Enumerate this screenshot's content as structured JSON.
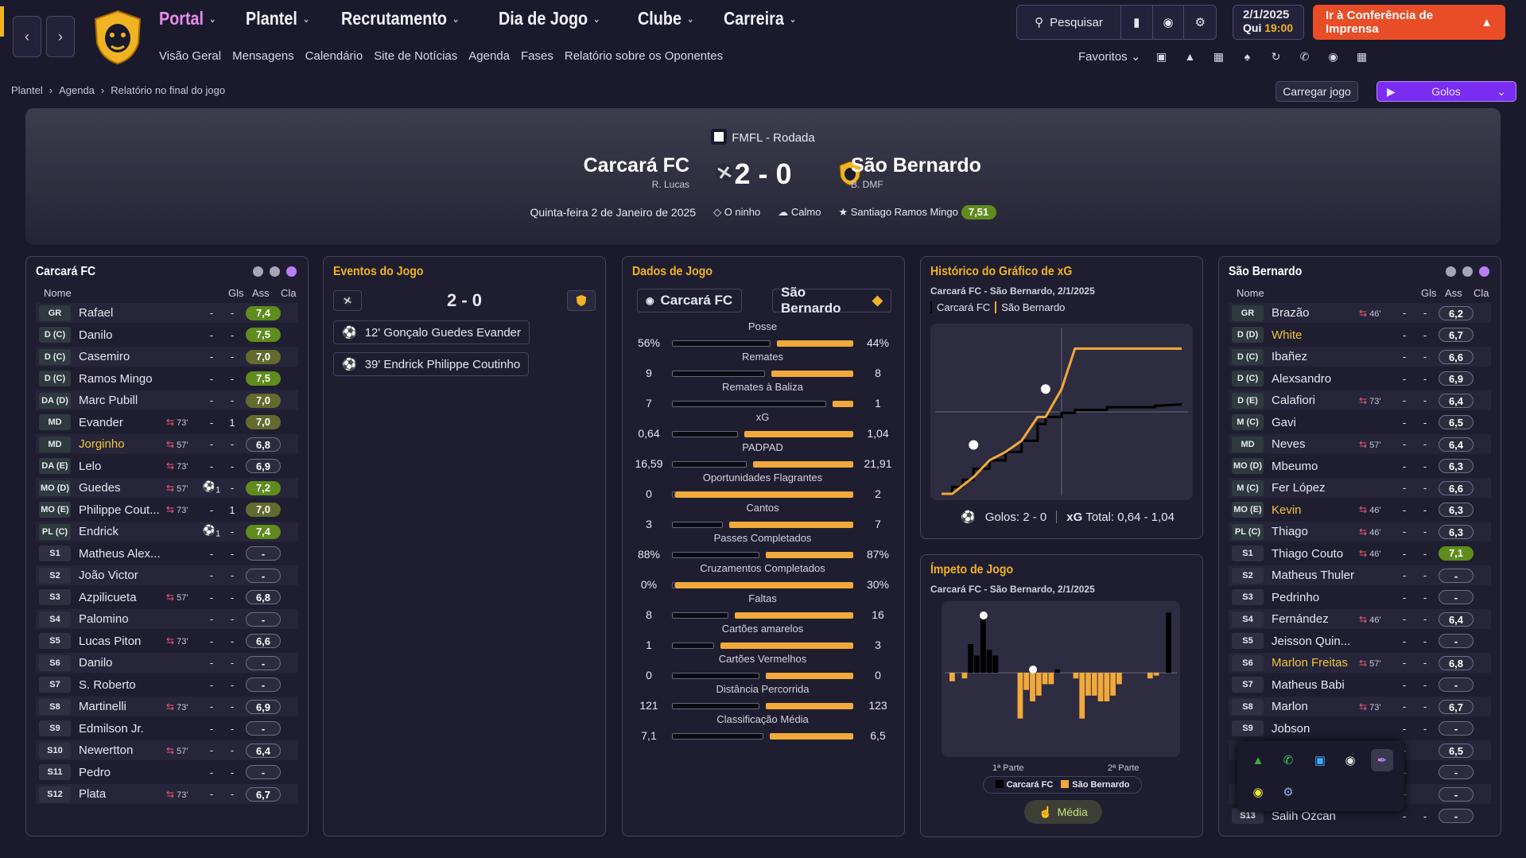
{
  "nav": {
    "items": [
      {
        "label": "Portal",
        "active": true
      },
      {
        "label": "Plantel"
      },
      {
        "label": "Recrutamento"
      },
      {
        "label": "Dia de Jogo"
      },
      {
        "label": "Clube"
      },
      {
        "label": "Carreira"
      }
    ],
    "sub": [
      "Visão Geral",
      "Mensagens",
      "Calendário",
      "Site de Notícias",
      "Agenda",
      "Fases",
      "Relatório sobre os Oponentes"
    ]
  },
  "toolbar": {
    "search_label": "Pesquisar",
    "date": "2/1/2025",
    "weekday": "Qui",
    "time": "19:00",
    "press_label": "Ir à Conferência de Imprensa",
    "favorites_label": "Favoritos"
  },
  "breadcrumb": [
    "Plantel",
    "Agenda",
    "Relatório no final do jogo"
  ],
  "actions": {
    "load_label": "Carregar jogo",
    "goals_label": "Golos"
  },
  "match": {
    "competition": "FMFL - Rodada",
    "home": "Carcará FC",
    "home_sub": "R. Lucas",
    "away": "São Bernardo",
    "away_sub": "B. DMF",
    "score": "2 - 0",
    "date": "Quinta-feira 2 de Janeiro de 2025",
    "stadium": "O ninho",
    "weather": "Calmo",
    "potm": "Santiago Ramos Mingo",
    "potm_rating": "7,51"
  },
  "home_team": {
    "title": "Carcará FC",
    "headers": {
      "name": "Nome",
      "gls": "Gls",
      "ass": "Ass",
      "cla": "Cla"
    },
    "players": [
      {
        "pos": "GR",
        "name": "Rafael",
        "sub": "",
        "gls": "-",
        "ass": "-",
        "cla": "7,4",
        "tone": "hi"
      },
      {
        "pos": "D (C)",
        "name": "Danilo",
        "sub": "",
        "gls": "-",
        "ass": "-",
        "cla": "7,5",
        "tone": "hi"
      },
      {
        "pos": "D (C)",
        "name": "Casemiro",
        "sub": "",
        "gls": "-",
        "ass": "-",
        "cla": "7,0",
        "tone": "mid"
      },
      {
        "pos": "D (C)",
        "name": "Ramos Mingo",
        "sub": "",
        "gls": "-",
        "ass": "-",
        "cla": "7,5",
        "tone": "hi"
      },
      {
        "pos": "DA (D)",
        "name": "Marc Pubill",
        "sub": "",
        "gls": "-",
        "ass": "-",
        "cla": "7,0",
        "tone": "mid"
      },
      {
        "pos": "MD",
        "name": "Evander",
        "sub": "73'",
        "gls": "-",
        "ass": "1",
        "cla": "7,0",
        "tone": "mid"
      },
      {
        "pos": "MD",
        "name": "Jorginho",
        "sub": "57'",
        "gls": "-",
        "ass": "-",
        "cla": "6,8",
        "tone": "grey",
        "hl": true
      },
      {
        "pos": "DA (E)",
        "name": "Lelo",
        "sub": "73'",
        "gls": "-",
        "ass": "-",
        "cla": "6,9",
        "tone": "grey"
      },
      {
        "pos": "MO (D)",
        "name": "Guedes",
        "sub": "57'",
        "gls": "1",
        "ass": "-",
        "cla": "7,2",
        "tone": "hi"
      },
      {
        "pos": "MO (E)",
        "name": "Philippe Cout...",
        "sub": "73'",
        "gls": "-",
        "ass": "1",
        "cla": "7,0",
        "tone": "mid"
      },
      {
        "pos": "PL (C)",
        "name": "Endrick",
        "sub": "",
        "gls": "1",
        "ass": "-",
        "cla": "7,4",
        "tone": "hi"
      },
      {
        "pos": "S1",
        "name": "Matheus Alex...",
        "sub": "",
        "gls": "-",
        "ass": "-",
        "cla": "-",
        "tone": "none"
      },
      {
        "pos": "S2",
        "name": "João Victor",
        "sub": "",
        "gls": "-",
        "ass": "-",
        "cla": "-",
        "tone": "none"
      },
      {
        "pos": "S3",
        "name": "Azpilicueta",
        "sub": "57'",
        "gls": "-",
        "ass": "-",
        "cla": "6,8",
        "tone": "grey"
      },
      {
        "pos": "S4",
        "name": "Palomino",
        "sub": "",
        "gls": "-",
        "ass": "-",
        "cla": "-",
        "tone": "none"
      },
      {
        "pos": "S5",
        "name": "Lucas Piton",
        "sub": "73'",
        "gls": "-",
        "ass": "-",
        "cla": "6,6",
        "tone": "grey"
      },
      {
        "pos": "S6",
        "name": "Danilo",
        "sub": "",
        "gls": "-",
        "ass": "-",
        "cla": "-",
        "tone": "none"
      },
      {
        "pos": "S7",
        "name": "S. Roberto",
        "sub": "",
        "gls": "-",
        "ass": "-",
        "cla": "-",
        "tone": "none"
      },
      {
        "pos": "S8",
        "name": "Martinelli",
        "sub": "73'",
        "gls": "-",
        "ass": "-",
        "cla": "6,9",
        "tone": "grey"
      },
      {
        "pos": "S9",
        "name": "Edmilson Jr.",
        "sub": "",
        "gls": "-",
        "ass": "-",
        "cla": "-",
        "tone": "none"
      },
      {
        "pos": "S10",
        "name": "Newertton",
        "sub": "57'",
        "gls": "-",
        "ass": "-",
        "cla": "6,4",
        "tone": "grey"
      },
      {
        "pos": "S11",
        "name": "Pedro",
        "sub": "",
        "gls": "-",
        "ass": "-",
        "cla": "-",
        "tone": "none"
      },
      {
        "pos": "S12",
        "name": "Plata",
        "sub": "73'",
        "gls": "-",
        "ass": "-",
        "cla": "6,7",
        "tone": "grey"
      }
    ]
  },
  "away_team": {
    "title": "São Bernardo",
    "headers": {
      "name": "Nome",
      "gls": "Gls",
      "ass": "Ass",
      "cla": "Cla"
    },
    "players": [
      {
        "pos": "GR",
        "name": "Brazão",
        "sub": "46'",
        "gls": "-",
        "ass": "-",
        "cla": "6,2",
        "tone": "grey"
      },
      {
        "pos": "D (D)",
        "name": "White",
        "sub": "",
        "gls": "-",
        "ass": "-",
        "cla": "6,7",
        "tone": "grey",
        "hl": true
      },
      {
        "pos": "D (C)",
        "name": "Ibañez",
        "sub": "",
        "gls": "-",
        "ass": "-",
        "cla": "6,6",
        "tone": "grey"
      },
      {
        "pos": "D (C)",
        "name": "Alexsandro",
        "sub": "",
        "gls": "-",
        "ass": "-",
        "cla": "6,9",
        "tone": "grey"
      },
      {
        "pos": "D (E)",
        "name": "Calafiori",
        "sub": "73'",
        "gls": "-",
        "ass": "-",
        "cla": "6,4",
        "tone": "grey"
      },
      {
        "pos": "M (C)",
        "name": "Gavi",
        "sub": "",
        "gls": "-",
        "ass": "-",
        "cla": "6,5",
        "tone": "grey"
      },
      {
        "pos": "MD",
        "name": "Neves",
        "sub": "57'",
        "gls": "-",
        "ass": "-",
        "cla": "6,4",
        "tone": "grey"
      },
      {
        "pos": "MO (D)",
        "name": "Mbeumo",
        "sub": "",
        "gls": "-",
        "ass": "-",
        "cla": "6,3",
        "tone": "grey"
      },
      {
        "pos": "M (C)",
        "name": "Fer López",
        "sub": "",
        "gls": "-",
        "ass": "-",
        "cla": "6,6",
        "tone": "grey"
      },
      {
        "pos": "MO (E)",
        "name": "Kevin",
        "sub": "46'",
        "gls": "-",
        "ass": "-",
        "cla": "6,3",
        "tone": "grey",
        "hl": true
      },
      {
        "pos": "PL (C)",
        "name": "Thiago",
        "sub": "46'",
        "gls": "-",
        "ass": "-",
        "cla": "6,3",
        "tone": "grey"
      },
      {
        "pos": "S1",
        "name": "Thiago Couto",
        "sub": "46'",
        "gls": "-",
        "ass": "-",
        "cla": "7,1",
        "tone": "hi"
      },
      {
        "pos": "S2",
        "name": "Matheus Thuler",
        "sub": "",
        "gls": "-",
        "ass": "-",
        "cla": "-",
        "tone": "none"
      },
      {
        "pos": "S3",
        "name": "Pedrinho",
        "sub": "",
        "gls": "-",
        "ass": "-",
        "cla": "-",
        "tone": "none"
      },
      {
        "pos": "S4",
        "name": "Fernández",
        "sub": "46'",
        "gls": "-",
        "ass": "-",
        "cla": "6,4",
        "tone": "grey"
      },
      {
        "pos": "S5",
        "name": "Jeisson Quin...",
        "sub": "",
        "gls": "-",
        "ass": "-",
        "cla": "-",
        "tone": "none"
      },
      {
        "pos": "S6",
        "name": "Marlon Freitas",
        "sub": "57'",
        "gls": "-",
        "ass": "-",
        "cla": "6,8",
        "tone": "grey",
        "hl": true
      },
      {
        "pos": "S7",
        "name": "Matheus Babi",
        "sub": "",
        "gls": "-",
        "ass": "-",
        "cla": "-",
        "tone": "none"
      },
      {
        "pos": "S8",
        "name": "Marlon",
        "sub": "73'",
        "gls": "-",
        "ass": "-",
        "cla": "6,7",
        "tone": "grey"
      },
      {
        "pos": "S9",
        "name": "Jobson",
        "sub": "",
        "gls": "-",
        "ass": "-",
        "cla": "-",
        "tone": "none"
      },
      {
        "pos": "",
        "name": "",
        "sub": "",
        "gls": "-",
        "ass": "",
        "cla": "6,5",
        "tone": "grey"
      },
      {
        "pos": "",
        "name": "",
        "sub": "",
        "gls": "-",
        "ass": "",
        "cla": "-",
        "tone": "none"
      },
      {
        "pos": "",
        "name": "",
        "sub": "",
        "gls": "-",
        "ass": "",
        "cla": "-",
        "tone": "none"
      },
      {
        "pos": "S13",
        "name": "Salih Ozcan",
        "sub": "",
        "gls": "-",
        "ass": "-",
        "cla": "-",
        "tone": "none"
      }
    ]
  },
  "events": {
    "title": "Eventos do Jogo",
    "score": "2 - 0",
    "items": [
      {
        "text": "12' Gonçalo Guedes Evander"
      },
      {
        "text": "39' Endrick Philippe Coutinho"
      }
    ]
  },
  "stats": {
    "title": "Dados de Jogo",
    "home": "Carcará FC",
    "away": "São Bernardo",
    "rows": [
      {
        "label": "Posse",
        "home": "56%",
        "away": "44%",
        "hp": 56,
        "ap": 44
      },
      {
        "label": "Remates",
        "home": "9",
        "away": "8",
        "hp": 53,
        "ap": 47
      },
      {
        "label": "Remates à Baliza",
        "home": "7",
        "away": "1",
        "hp": 87,
        "ap": 13
      },
      {
        "label": "xG",
        "home": "0,64",
        "away": "1,04",
        "hp": 38,
        "ap": 62
      },
      {
        "label": "PADPAD",
        "home": "16,59",
        "away": "21,91",
        "hp": 43,
        "ap": 57
      },
      {
        "label": "Oportunidades Flagrantes",
        "home": "0",
        "away": "2",
        "hp": 0,
        "ap": 100
      },
      {
        "label": "Cantos",
        "home": "3",
        "away": "7",
        "hp": 30,
        "ap": 70
      },
      {
        "label": "Passes Completados",
        "home": "88%",
        "away": "87%",
        "hp": 50,
        "ap": 50
      },
      {
        "label": "Cruzamentos Completados",
        "home": "0%",
        "away": "30%",
        "hp": 0,
        "ap": 100
      },
      {
        "label": "Faltas",
        "home": "8",
        "away": "16",
        "hp": 33,
        "ap": 67
      },
      {
        "label": "Cartões amarelos",
        "home": "1",
        "away": "3",
        "hp": 25,
        "ap": 75
      },
      {
        "label": "Cartões Vermelhos",
        "home": "0",
        "away": "0",
        "hp": 50,
        "ap": 50
      },
      {
        "label": "Distância Percorrida",
        "home": "121",
        "away": "123",
        "hp": 50,
        "ap": 50
      },
      {
        "label": "Classificação Média",
        "home": "7,1",
        "away": "6,5",
        "hp": 52,
        "ap": 48
      }
    ]
  },
  "xg": {
    "title": "Histórico do Gráfico de xG",
    "subtitle": "Carcará FC - São Bernardo, 2/1/2025",
    "legend_home": "Carcará FC",
    "legend_away": "São Bernardo",
    "goals_label": "Golos: 2 - 0",
    "xg_label": "xG",
    "total_label": "Total: 0,64 - 1,04"
  },
  "impetus": {
    "title": "Ímpeto de Jogo",
    "subtitle": "Carcará FC - São Bernardo, 2/1/2025",
    "half1": "1ª Parte",
    "half2": "2ª Parte",
    "legend_home": "Carcará FC",
    "legend_away": "São Bernardo",
    "media_label": "Média"
  },
  "colors": {
    "accent": "#f0b323",
    "press": "#e94d27",
    "goals": "#7a2df0",
    "away_bar": "#f2a93b"
  },
  "chart_data": [
    {
      "type": "line",
      "x": [
        0,
        4,
        4,
        8,
        8,
        12,
        12,
        18,
        18,
        24,
        24,
        30,
        30,
        36,
        36,
        39,
        39,
        45,
        45,
        50,
        50,
        62,
        62,
        80,
        80,
        90
      ],
      "series": [
        {
          "name": "Carcará FC",
          "values": [
            0,
            0,
            0.05,
            0.05,
            0.1,
            0.1,
            0.18,
            0.18,
            0.24,
            0.24,
            0.3,
            0.3,
            0.38,
            0.38,
            0.5,
            0.5,
            0.55,
            0.55,
            0.58,
            0.58,
            0.6,
            0.6,
            0.62,
            0.62,
            0.63,
            0.64
          ]
        },
        {
          "name": "São Bernardo",
          "values": [
            0,
            0,
            0,
            0.06,
            0.06,
            0.12,
            0.12,
            0.24,
            0.24,
            0.3,
            0.3,
            0.38,
            0.38,
            0.55,
            0.55,
            0.55,
            0.55,
            0.75,
            0.75,
            1.04,
            1.04,
            1.04,
            1.04,
            1.04,
            1.04,
            1.04
          ]
        }
      ]
    },
    {
      "type": "bar",
      "categories": [
        "1",
        "2",
        "3",
        "4",
        "5",
        "6",
        "7",
        "8",
        "9",
        "10",
        "11",
        "12",
        "13",
        "14",
        "15",
        "16",
        "17",
        "18",
        "19",
        "20",
        "21",
        "22",
        "23",
        "24",
        "25",
        "26",
        "27",
        "28",
        "29",
        "30",
        "31",
        "32",
        "33",
        "34",
        "35",
        "36"
      ],
      "series": [
        {
          "name": "Carcará FC",
          "values": [
            0,
            0,
            0,
            0.5,
            0.3,
            1.0,
            0.4,
            0.3,
            0,
            0,
            0,
            0,
            0,
            0,
            0,
            0,
            0,
            0.06,
            0,
            0,
            0,
            0,
            0,
            0,
            0,
            0,
            0,
            0,
            0,
            0,
            0,
            0,
            0,
            0,
            0,
            1.05
          ]
        },
        {
          "name": "São Bernardo",
          "values": [
            -0.15,
            0,
            -0.1,
            0,
            0,
            0,
            0,
            0,
            0,
            0,
            0,
            -0.8,
            -0.3,
            -0.5,
            -0.4,
            -0.2,
            -0.2,
            0,
            0,
            0,
            -0.1,
            -0.8,
            -0.4,
            -0.4,
            -0.5,
            -0.5,
            -0.4,
            -0.2,
            0,
            0,
            0,
            0,
            -0.1,
            -0.05,
            0,
            0
          ]
        }
      ]
    }
  ]
}
